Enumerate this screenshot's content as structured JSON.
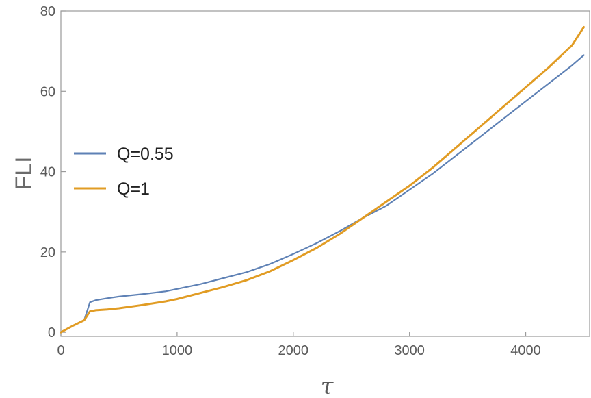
{
  "chart_data": {
    "type": "line",
    "title": "",
    "xlabel": "τ",
    "ylabel": "FLI",
    "xlim": [
      0,
      4550
    ],
    "ylim": [
      -1,
      80
    ],
    "xticks": [
      0,
      1000,
      2000,
      3000,
      4000
    ],
    "yticks": [
      0,
      20,
      40,
      60,
      80
    ],
    "grid": false,
    "legend_position": "left",
    "series": [
      {
        "name": "Q=0.55",
        "color": "#5e81b5",
        "x": [
          0,
          100,
          200,
          250,
          300,
          400,
          500,
          700,
          900,
          1000,
          1200,
          1400,
          1600,
          1800,
          2000,
          2200,
          2400,
          2600,
          2800,
          3000,
          3200,
          3400,
          3600,
          3800,
          4000,
          4200,
          4400,
          4500
        ],
        "y": [
          0,
          1.6,
          3.0,
          7.5,
          8.0,
          8.5,
          8.9,
          9.5,
          10.2,
          10.8,
          12.0,
          13.5,
          15.0,
          17.0,
          19.5,
          22.2,
          25.2,
          28.5,
          31.5,
          35.5,
          39.5,
          44.0,
          48.5,
          53.0,
          57.5,
          62.0,
          66.5,
          69.0
        ]
      },
      {
        "name": "Q=1",
        "color": "#e19c24",
        "x": [
          0,
          100,
          200,
          250,
          300,
          400,
          500,
          700,
          900,
          1000,
          1200,
          1400,
          1600,
          1800,
          2000,
          2200,
          2400,
          2600,
          2800,
          3000,
          3200,
          3400,
          3600,
          3800,
          4000,
          4200,
          4400,
          4500
        ],
        "y": [
          0,
          1.6,
          3.0,
          5.2,
          5.5,
          5.7,
          6.0,
          6.8,
          7.7,
          8.3,
          9.8,
          11.3,
          13.0,
          15.2,
          18.0,
          21.0,
          24.5,
          28.5,
          32.5,
          36.5,
          41.0,
          46.0,
          51.0,
          56.0,
          61.0,
          66.0,
          71.5,
          76.0
        ]
      }
    ]
  }
}
